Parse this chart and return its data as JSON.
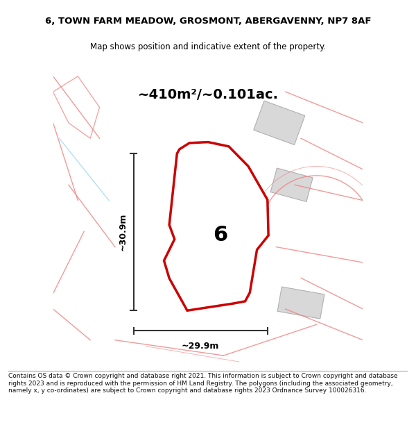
{
  "title_line1": "6, TOWN FARM MEADOW, GROSMONT, ABERGAVENNY, NP7 8AF",
  "title_line2": "Map shows position and indicative extent of the property.",
  "area_label": "~410m²/~0.101ac.",
  "width_label": "~29.9m",
  "height_label": "~30.9m",
  "plot_number": "6",
  "footer_text": "Contains OS data © Crown copyright and database right 2021. This information is subject to Crown copyright and database rights 2023 and is reproduced with the permission of HM Land Registry. The polygons (including the associated geometry, namely x, y co-ordinates) are subject to Crown copyright and database rights 2023 Ordnance Survey 100026316.",
  "bg_color": "#ffffff",
  "map_bg": "#f5f5f0",
  "plot_fill": "#ffffff",
  "plot_edge": "#cc0000",
  "other_fill": "#d8d8d8",
  "other_edge": "#b0b0b0",
  "road_fill": "#ffffff",
  "pink_line": "#f08080",
  "blue_line": "#aaddee",
  "dim_color": "#333333"
}
